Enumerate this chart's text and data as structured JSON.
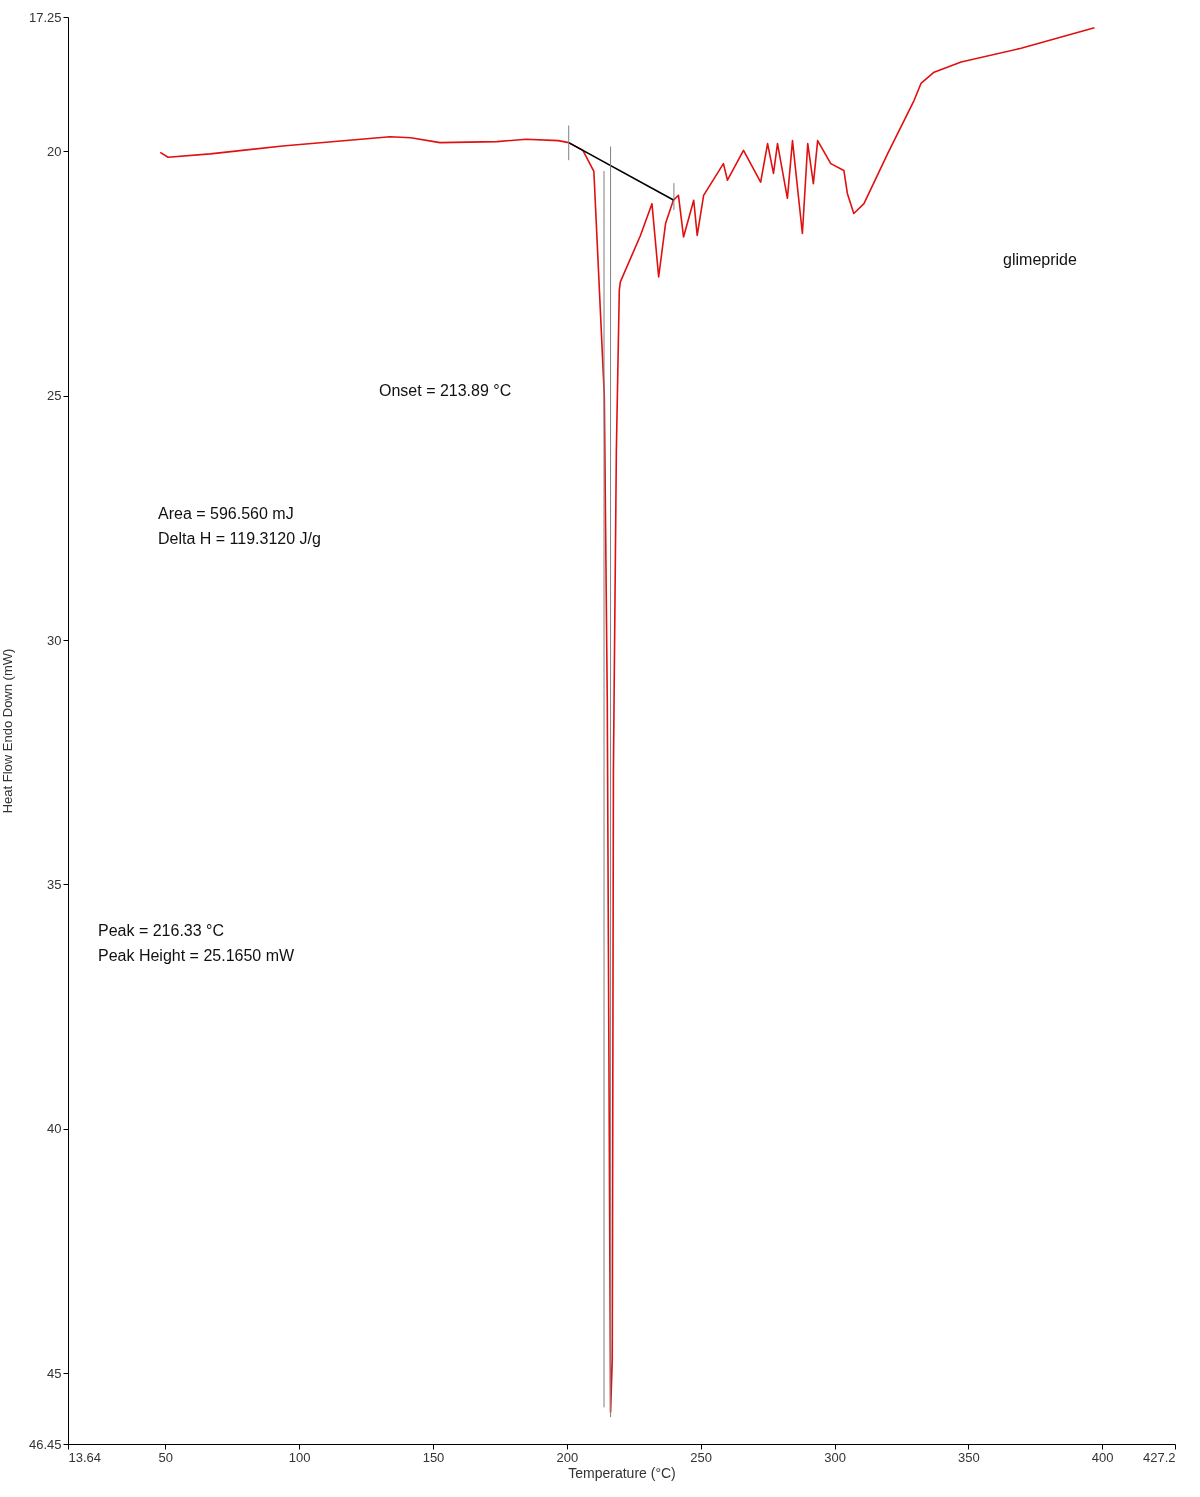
{
  "chart_data": {
    "type": "line",
    "xlabel": "Temperature (°C)",
    "ylabel": "Heat Flow Endo Down (mW)",
    "xlim": [
      13.64,
      427.2
    ],
    "xticks": [
      13.64,
      50,
      100,
      150,
      200,
      250,
      300,
      350,
      400,
      427.2
    ],
    "ylim": [
      46.45,
      17.25
    ],
    "yticks": [
      17.25,
      20,
      25,
      30,
      35,
      40,
      45,
      46.45
    ],
    "grid": false,
    "annotations": [
      "glimepride",
      "Onset = 213.89 °C",
      "Area = 596.560 mJ",
      "Delta H = 119.3120 J/g",
      "Peak = 216.33 °C",
      "Peak Height = 25.1650 mW"
    ],
    "series": [
      {
        "color": "#e01010",
        "x": [
          48.1,
          51,
          66.8,
          93.8,
          133.9,
          141.7,
          152.6,
          173.9,
          184.8,
          196.8,
          200.7,
          206,
          210.1,
          214,
          215.1,
          216.33,
          216.97,
          217.4,
          218.5,
          219.6,
          220,
          227.5,
          231.8,
          234.3,
          236.9,
          239.8,
          241.7,
          243.6,
          247.4,
          248.7,
          251.1,
          258.5,
          260,
          266,
          272.4,
          275,
          277.2,
          278.7,
          282.4,
          284.3,
          288,
          290,
          292.1,
          293.7,
          298.6,
          303.5,
          304.8,
          307.2,
          311,
          319.9,
          329.7,
          332.3,
          337.2,
          347.3,
          369.7,
          397.1
        ],
        "values": [
          20.02,
          20.12,
          20.05,
          19.89,
          19.7,
          19.72,
          19.82,
          19.8,
          19.75,
          19.78,
          19.82,
          19.98,
          20.41,
          25,
          31.2,
          45.8,
          44.73,
          32.66,
          26.12,
          22.84,
          22.67,
          21.72,
          21.07,
          22.57,
          21.47,
          21,
          20.9,
          21.75,
          21,
          21.72,
          20.9,
          20.25,
          20.59,
          19.98,
          20.63,
          19.84,
          20.45,
          19.84,
          20.96,
          19.78,
          21.68,
          19.84,
          20.66,
          19.78,
          20.25,
          20.39,
          20.86,
          21.27,
          21.07,
          20.04,
          18.96,
          18.61,
          18.38,
          18.17,
          17.89,
          17.47
        ]
      },
      {
        "color": "#000000",
        "x": [
          200.7,
          240
        ],
        "values": [
          19.82,
          21.0
        ]
      },
      {
        "color": "#808080",
        "x": [
          200.7,
          200.7
        ],
        "values": [
          19.47,
          20.18
        ]
      },
      {
        "color": "#808080",
        "x": [
          240,
          240
        ],
        "values": [
          20.65,
          21.2
        ]
      },
      {
        "color": "#808080",
        "x": [
          213.89,
          213.89
        ],
        "values": [
          20.4,
          45.7
        ]
      },
      {
        "color": "#808080",
        "x": [
          216.33,
          216.33
        ],
        "values": [
          19.9,
          45.9
        ]
      }
    ]
  }
}
